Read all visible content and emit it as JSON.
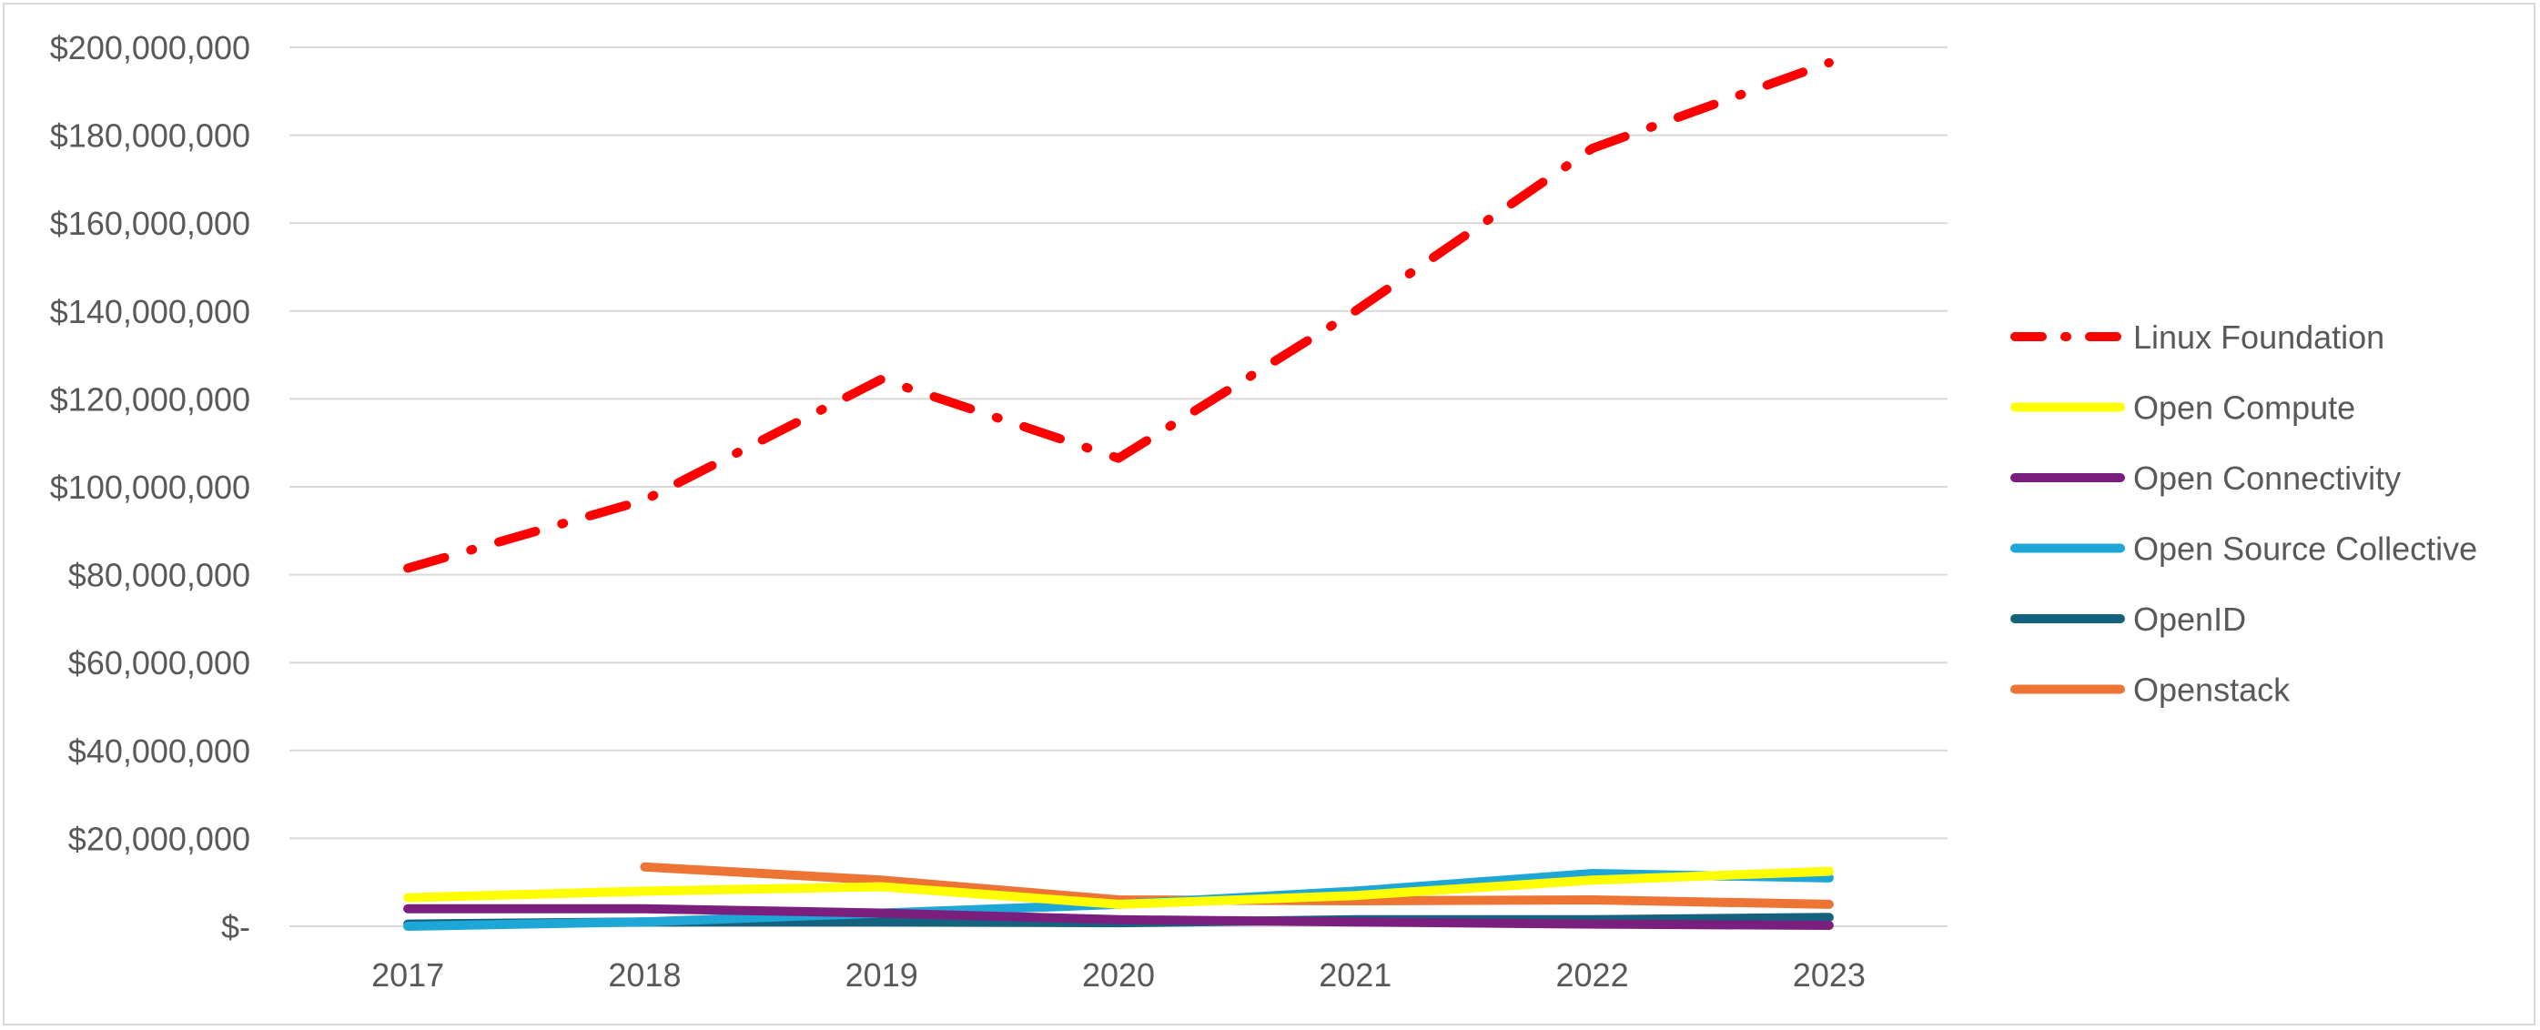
{
  "chart_data": {
    "type": "line",
    "title": "",
    "xlabel": "",
    "ylabel": "",
    "x": [
      "2017",
      "2018",
      "2019",
      "2020",
      "2021",
      "2022",
      "2023"
    ],
    "ylim": [
      0,
      200000000
    ],
    "y_ticks": [
      0,
      20000000,
      40000000,
      60000000,
      80000000,
      100000000,
      120000000,
      140000000,
      160000000,
      180000000,
      200000000
    ],
    "y_tick_labels": [
      "$-",
      "$20,000,000",
      "$40,000,000",
      "$60,000,000",
      "$80,000,000",
      "$100,000,000",
      "$120,000,000",
      "$140,000,000",
      "$160,000,000",
      "$180,000,000",
      "$200,000,000"
    ],
    "grid": "horizontal",
    "legend_position": "right",
    "series": [
      {
        "name": "Linux Foundation",
        "color": "#ff0000",
        "style": "dash-dot",
        "values": [
          81500000,
          97000000,
          124500000,
          106500000,
          140000000,
          177000000,
          196500000
        ]
      },
      {
        "name": "Open Compute",
        "color": "#ffff00",
        "style": "solid",
        "values": [
          6500000,
          8000000,
          9000000,
          5000000,
          7000000,
          10500000,
          12500000
        ]
      },
      {
        "name": "Open Connectivity",
        "color": "#7b1f7e",
        "style": "solid",
        "values": [
          4000000,
          4000000,
          3000000,
          1500000,
          1000000,
          500000,
          200000
        ]
      },
      {
        "name": "Open Source Collective",
        "color": "#1ea7d6",
        "style": "solid",
        "values": [
          0,
          1000000,
          3000000,
          5000000,
          8000000,
          12000000,
          11000000
        ]
      },
      {
        "name": "OpenID",
        "color": "#14627e",
        "style": "solid",
        "values": [
          500000,
          1000000,
          1000000,
          800000,
          1500000,
          1500000,
          2000000
        ]
      },
      {
        "name": "Openstack",
        "color": "#ed7435",
        "style": "solid",
        "values": [
          null,
          13500000,
          10500000,
          6000000,
          5800000,
          6000000,
          5000000
        ]
      }
    ]
  }
}
